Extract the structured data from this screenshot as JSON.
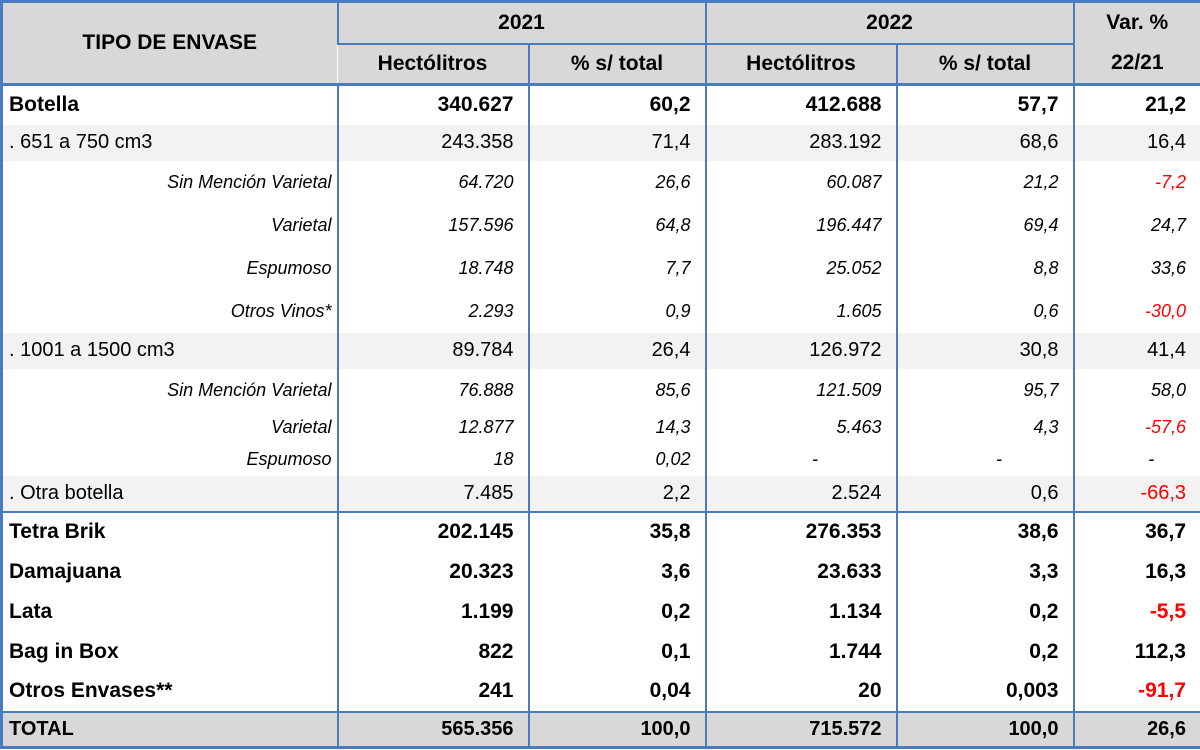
{
  "colors": {
    "border_blue": "#4a7bbe",
    "header_gray": "#d8d8d8",
    "subrow_gray": "#f2f2f2",
    "negative_red": "#ff0000",
    "text": "#000000"
  },
  "header": {
    "col_type": "TIPO DE ENVASE",
    "year1": "2021",
    "year2": "2022",
    "hectolitros1": "Hectólitros",
    "pct_total1": "% s/ total",
    "hectolitros2": "Hectólitros",
    "pct_total2": "% s/ total",
    "var_line1": "Var. %",
    "var_line2": "22/21"
  },
  "rows": [
    {
      "label": "Botella",
      "level": "l1",
      "hl21": "340.627",
      "pct21": "60,2",
      "hl22": "412.688",
      "pct22": "57,7",
      "var": "21,2"
    },
    {
      "label": ". 651 a 750 cm3",
      "level": "l2",
      "hl21": "243.358",
      "pct21": "71,4",
      "hl22": "283.192",
      "pct22": "68,6",
      "var": "16,4"
    },
    {
      "label": "Sin Mención Varietal",
      "level": "l3",
      "hl21": "64.720",
      "pct21": "26,6",
      "hl22": "60.087",
      "pct22": "21,2",
      "var": "-7,2"
    },
    {
      "label": "Varietal",
      "level": "l3",
      "hl21": "157.596",
      "pct21": "64,8",
      "hl22": "196.447",
      "pct22": "69,4",
      "var": "24,7"
    },
    {
      "label": "Espumoso",
      "level": "l3",
      "hl21": "18.748",
      "pct21": "7,7",
      "hl22": "25.052",
      "pct22": "8,8",
      "var": "33,6"
    },
    {
      "label": "Otros Vinos*",
      "level": "l3",
      "hl21": "2.293",
      "pct21": "0,9",
      "hl22": "1.605",
      "pct22": "0,6",
      "var": "-30,0"
    },
    {
      "label": ". 1001 a 1500 cm3",
      "level": "l2",
      "hl21": "89.784",
      "pct21": "26,4",
      "hl22": "126.972",
      "pct22": "30,8",
      "var": "41,4"
    },
    {
      "label": "Sin Mención Varietal",
      "level": "l3",
      "hl21": "76.888",
      "pct21": "85,6",
      "hl22": "121.509",
      "pct22": "95,7",
      "var": "58,0"
    },
    {
      "label": "Varietal",
      "level": "l3c",
      "hl21": "12.877",
      "pct21": "14,3",
      "hl22": "5.463",
      "pct22": "4,3",
      "var": "-57,6"
    },
    {
      "label": "Espumoso",
      "level": "l3c",
      "hl21": "18",
      "pct21": "0,02",
      "hl22": "-",
      "pct22": "-",
      "var": "-"
    },
    {
      "label": ". Otra botella",
      "level": "l2",
      "section_end": true,
      "hl21": "7.485",
      "pct21": "2,2",
      "hl22": "2.524",
      "pct22": "0,6",
      "var": "-66,3"
    },
    {
      "label": "Tetra Brik",
      "level": "l1",
      "hl21": "202.145",
      "pct21": "35,8",
      "hl22": "276.353",
      "pct22": "38,6",
      "var": "36,7"
    },
    {
      "label": "Damajuana",
      "level": "l1",
      "hl21": "20.323",
      "pct21": "3,6",
      "hl22": "23.633",
      "pct22": "3,3",
      "var": "16,3"
    },
    {
      "label": "Lata",
      "level": "l1",
      "hl21": "1.199",
      "pct21": "0,2",
      "hl22": "1.134",
      "pct22": "0,2",
      "var": "-5,5"
    },
    {
      "label": "Bag in Box",
      "level": "l1",
      "hl21": "822",
      "pct21": "0,1",
      "hl22": "1.744",
      "pct22": "0,2",
      "var": "112,3"
    },
    {
      "label": "Otros Envases**",
      "level": "l1",
      "hl21": "241",
      "pct21": "0,04",
      "hl22": "20",
      "pct22": "0,003",
      "var": "-91,7"
    },
    {
      "label": "TOTAL",
      "level": "total",
      "hl21": "565.356",
      "pct21": "100,0",
      "hl22": "715.572",
      "pct22": "100,0",
      "var": "26,6"
    }
  ]
}
